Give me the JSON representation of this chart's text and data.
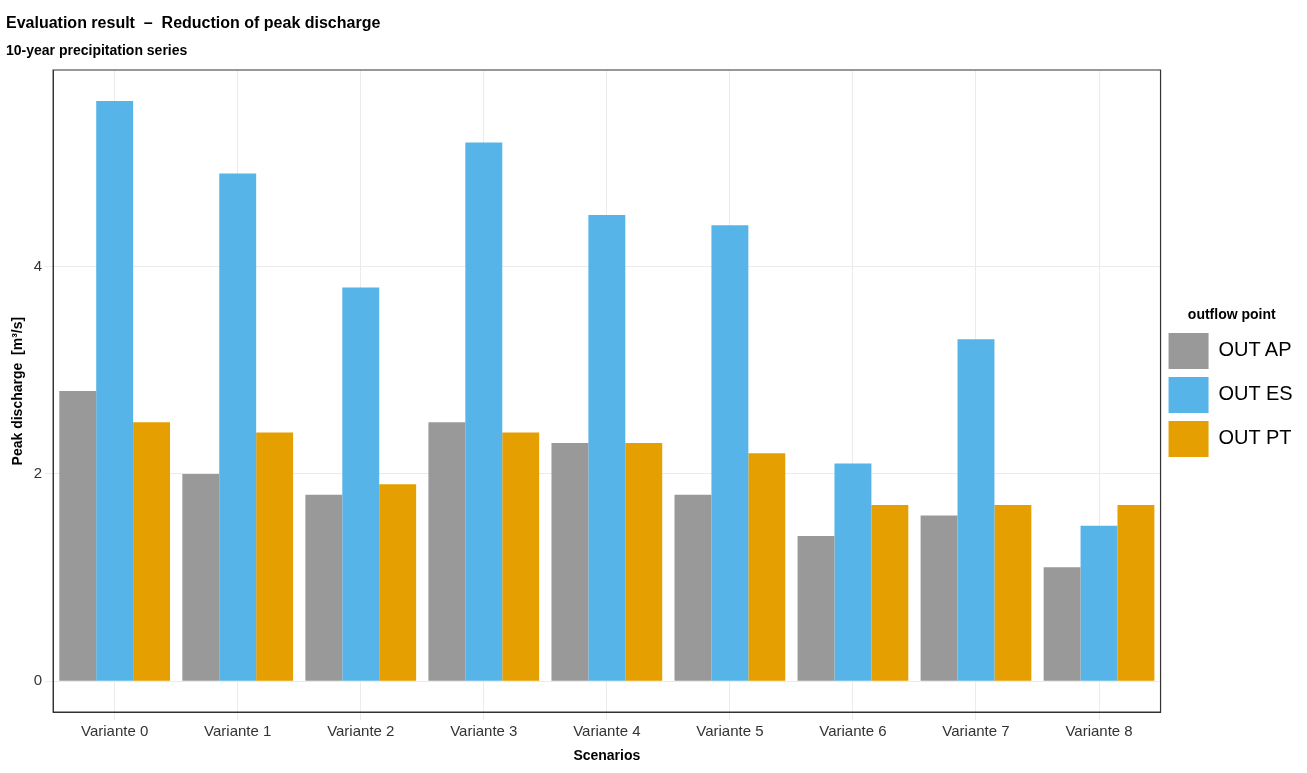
{
  "chart_data": {
    "type": "bar",
    "title": "Evaluation result  –  Reduction of peak discharge",
    "subtitle": "10-year precipitation series",
    "xlabel": "Scenarios",
    "ylabel": "Peak discharge  [m³/s]",
    "legend_title": "outflow point",
    "categories": [
      "Variante 0",
      "Variante 1",
      "Variante 2",
      "Variante 3",
      "Variante 4",
      "Variante 5",
      "Variante 6",
      "Variante 7",
      "Variante 8"
    ],
    "series": [
      {
        "name": "OUT AP",
        "color": "#999999",
        "values": [
          2.8,
          2.0,
          1.8,
          2.5,
          2.3,
          1.8,
          1.4,
          1.6,
          1.1
        ]
      },
      {
        "name": "OUT ES",
        "color": "#56b4e9",
        "values": [
          5.6,
          4.9,
          3.8,
          5.2,
          4.5,
          4.4,
          2.1,
          3.3,
          1.5
        ]
      },
      {
        "name": "OUT PT",
        "color": "#e69f00",
        "values": [
          2.5,
          2.4,
          1.9,
          2.4,
          2.3,
          2.2,
          1.7,
          1.7,
          1.7
        ]
      }
    ],
    "ylim": [
      -0.3,
      5.9
    ],
    "yticks": [
      0,
      2,
      4
    ],
    "grid": true,
    "legend": "right"
  }
}
